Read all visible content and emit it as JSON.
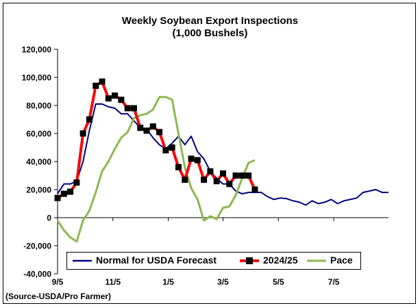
{
  "chart_data": {
    "type": "line",
    "title": "Weekly Soybean Export Inspections",
    "subtitle": "(1,000 Bushels)",
    "source": "(Source-USDA/Pro Farmer)",
    "ylim": [
      -40000,
      120000
    ],
    "yticks": [
      -40000,
      -20000,
      0,
      20000,
      40000,
      60000,
      80000,
      100000,
      120000
    ],
    "ytick_labels": [
      "-40,000",
      "-20,000",
      "0",
      "20,000",
      "40,000",
      "60,000",
      "80,000",
      "100,000",
      "120,000"
    ],
    "xlim": [
      0,
      52
    ],
    "xticks": [
      0,
      8.7,
      17.4,
      26,
      34.7,
      43.4
    ],
    "xtick_labels": [
      "9/5",
      "11/5",
      "1/5",
      "3/5",
      "5/5",
      "7/5"
    ],
    "grid": false,
    "legend_position": "bottom",
    "series": [
      {
        "name": "Normal for USDA Forecast",
        "color": "#000080",
        "marker": "none",
        "x": [
          0,
          1,
          2,
          3,
          4,
          5,
          6,
          7,
          8,
          9,
          10,
          11,
          12,
          13,
          14,
          15,
          16,
          17,
          18,
          19,
          20,
          21,
          22,
          23,
          24,
          25,
          26,
          27,
          28,
          29,
          30,
          31,
          32,
          33,
          34,
          35,
          36,
          37,
          38,
          39,
          40,
          41,
          42,
          43,
          44,
          45,
          46,
          47,
          48,
          49,
          50,
          51,
          52
        ],
        "y": [
          17000,
          24000,
          24000,
          26000,
          40000,
          62000,
          81000,
          81000,
          79000,
          78000,
          74000,
          74000,
          69000,
          64000,
          63000,
          57000,
          52000,
          49000,
          53000,
          58000,
          52000,
          58000,
          47000,
          42000,
          33000,
          28000,
          24000,
          24000,
          19000,
          17000,
          18000,
          18000,
          18000,
          15000,
          13000,
          14000,
          13500,
          12000,
          11000,
          9000,
          12000,
          10000,
          11000,
          13000,
          10000,
          12000,
          13000,
          14000,
          18000,
          19000,
          20000,
          18000,
          18000
        ]
      },
      {
        "name": "2024/25",
        "color": "#ff0000",
        "marker": "square",
        "x": [
          0,
          1,
          2,
          3,
          4,
          5,
          6,
          7,
          8,
          9,
          10,
          11,
          12,
          13,
          14,
          15,
          16,
          17,
          18,
          19,
          20,
          21,
          22,
          23,
          24,
          25,
          26,
          27,
          28,
          29,
          30,
          31
        ],
        "y": [
          14000,
          17000,
          18500,
          25000,
          60000,
          70000,
          94000,
          97000,
          85000,
          87000,
          84000,
          78000,
          78000,
          64000,
          62000,
          65000,
          61000,
          48000,
          50000,
          36000,
          27000,
          42000,
          41000,
          27000,
          33000,
          26000,
          31500,
          24000,
          30000,
          30000,
          30000,
          20000
        ]
      },
      {
        "name": "Pace",
        "color": "#8db84e",
        "marker": "none",
        "x": [
          0,
          1,
          2,
          3,
          4,
          5,
          6,
          7,
          8,
          9,
          10,
          11,
          12,
          13,
          14,
          15,
          16,
          17,
          18,
          19,
          20,
          21,
          22,
          23,
          24,
          25,
          26,
          27,
          28,
          29,
          30,
          31
        ],
        "y": [
          -2000,
          -9000,
          -14000,
          -17000,
          -2000,
          5000,
          18000,
          33000,
          40000,
          49000,
          57000,
          61000,
          71000,
          73000,
          74000,
          77000,
          86000,
          86000,
          84000,
          60000,
          36000,
          21000,
          13000,
          -2000,
          1000,
          -1000,
          7000,
          8000,
          16000,
          28000,
          39000,
          41000
        ]
      }
    ]
  }
}
